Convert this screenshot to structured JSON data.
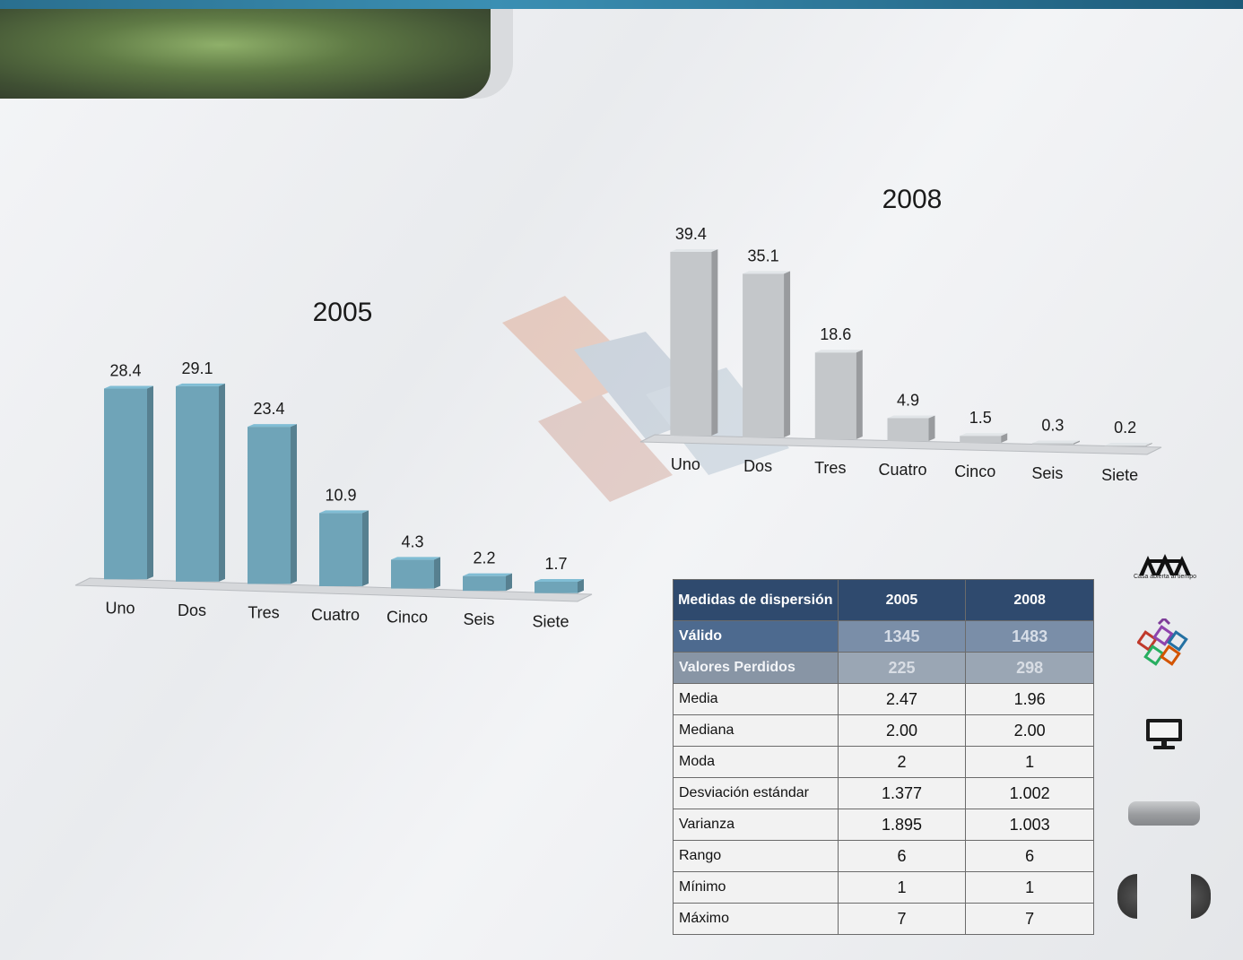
{
  "chart_data": [
    {
      "type": "bar",
      "title": "2005",
      "categories": [
        "Uno",
        "Dos",
        "Tres",
        "Cuatro",
        "Cinco",
        "Seis",
        "Siete"
      ],
      "values": [
        28.4,
        29.1,
        23.4,
        10.9,
        4.3,
        2.2,
        1.7
      ],
      "value_labels": [
        "28.4",
        "29.1",
        "23.4",
        "10.9",
        "4.3",
        "2.2",
        "1.7"
      ],
      "bar_color": "#6fa4b8",
      "style": "3d",
      "grid": false,
      "legend": "none"
    },
    {
      "type": "bar",
      "title": "2008",
      "categories": [
        "Uno",
        "Dos",
        "Tres",
        "Cuatro",
        "Cinco",
        "Seis",
        "Siete"
      ],
      "values": [
        39.4,
        35.1,
        18.6,
        4.9,
        1.5,
        0.3,
        0.2
      ],
      "value_labels": [
        "39.4",
        "35.1",
        "18.6",
        "4.9",
        "1.5",
        "0.3",
        "0.2"
      ],
      "bar_color": "#c4c7ca",
      "style": "3d",
      "grid": false,
      "legend": "none"
    }
  ],
  "table": {
    "header": [
      "Medidas  de dispersión",
      "2005",
      "2008"
    ],
    "rows": [
      {
        "label": "Válido",
        "v2005": "1345",
        "v2008": "1483",
        "style": "valid"
      },
      {
        "label": "Valores Perdidos",
        "v2005": "225",
        "v2008": "298",
        "style": "lost"
      },
      {
        "label": "Media",
        "v2005": "2.47",
        "v2008": "1.96",
        "style": "plain"
      },
      {
        "label": "Mediana",
        "v2005": "2.00",
        "v2008": "2.00",
        "style": "plain"
      },
      {
        "label": "Moda",
        "v2005": "2",
        "v2008": "1",
        "style": "plain"
      },
      {
        "label": "Desviación estándar",
        "v2005": "1.377",
        "v2008": "1.002",
        "style": "plain"
      },
      {
        "label": "Varianza",
        "v2005": "1.895",
        "v2008": "1.003",
        "style": "plain"
      },
      {
        "label": "Rango",
        "v2005": "6",
        "v2008": "6",
        "style": "plain"
      },
      {
        "label": "Mínimo",
        "v2005": "1",
        "v2008": "1",
        "style": "plain"
      },
      {
        "label": "Máximo",
        "v2005": "7",
        "v2008": "7",
        "style": "plain"
      }
    ]
  },
  "sidebar": {
    "logo_text": "Casa abierta al tiempo",
    "icons": [
      "uam-logo-icon",
      "cubes-logo-icon",
      "monitor-icon"
    ]
  },
  "colors": {
    "topbar": "#2a6f8f",
    "title_tab": "#5f7a45",
    "table_header": "#2f4a6e"
  }
}
